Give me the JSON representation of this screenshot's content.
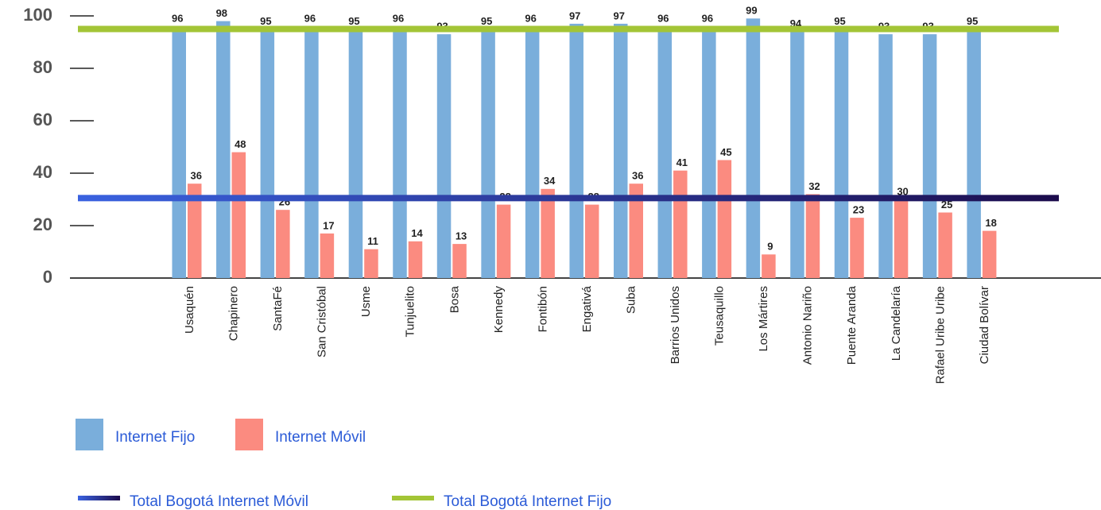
{
  "chart_data": {
    "type": "bar",
    "categories": [
      "Usaquén",
      "Chapinero",
      "SantaFé",
      "San Cristóbal",
      "Usme",
      "Tunjuelito",
      "Bosa",
      "Kennedy",
      "Fontibón",
      "Engativá",
      "Suba",
      "Barrios Unidos",
      "Teusaquillo",
      "Los Mártires",
      "Antonio Nariño",
      "Puente Aranda",
      "La Candelaría",
      "Rafael Uribe Uribe",
      "Ciudad Bolívar"
    ],
    "series": [
      {
        "name": "Internet Fijo",
        "color": "#7aaedb",
        "values": [
          96,
          98,
          95,
          96,
          95,
          96,
          93,
          95,
          96,
          97,
          97,
          96,
          96,
          99,
          94,
          95,
          93,
          93,
          95
        ]
      },
      {
        "name": "Internet Móvil",
        "color": "#fb8b80",
        "values": [
          36,
          48,
          26,
          17,
          11,
          14,
          13,
          28,
          34,
          28,
          36,
          41,
          45,
          9,
          32,
          23,
          30,
          25,
          18
        ]
      }
    ],
    "reference_lines": [
      {
        "name": "Total Bogotá Internet Móvil",
        "value": 30.5,
        "colors": [
          "#3a62e0",
          "#1c0c4c"
        ]
      },
      {
        "name": "Total Bogotá Internet Fijo",
        "value": 95,
        "colors": [
          "#a3c536",
          "#a3c536"
        ]
      }
    ],
    "ylim": [
      0,
      100
    ],
    "yticks": [
      0,
      20,
      40,
      60,
      80,
      100
    ]
  }
}
